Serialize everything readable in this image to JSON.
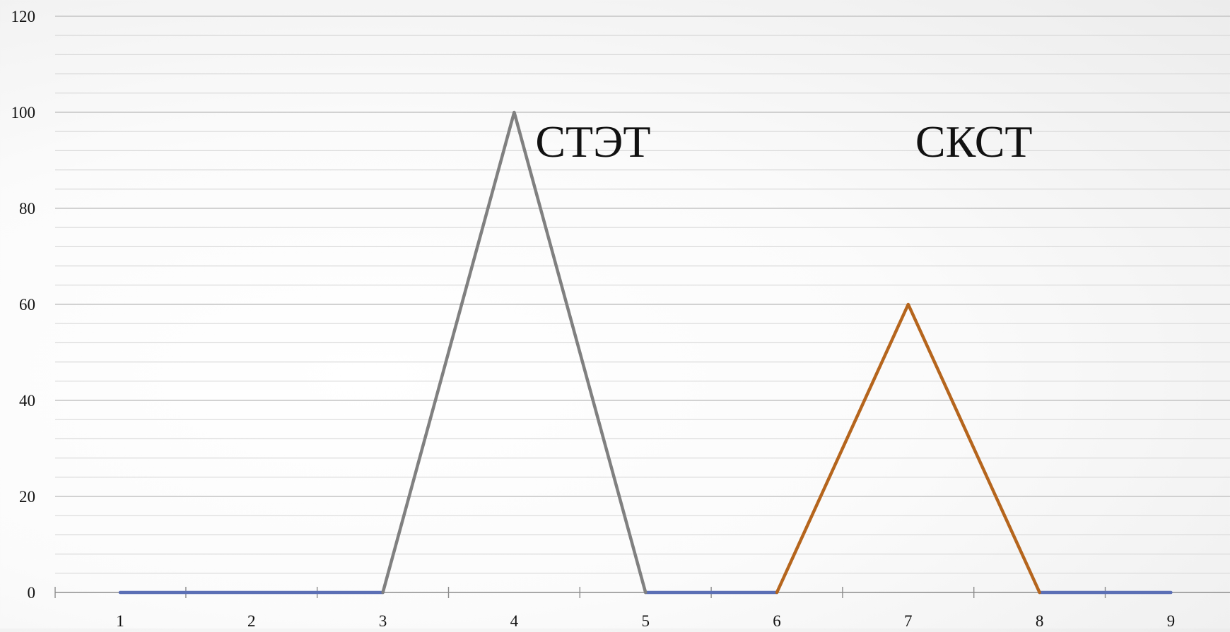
{
  "chart_data": {
    "type": "line",
    "title": "",
    "xlabel": "",
    "ylabel": "",
    "categories": [
      "1",
      "2",
      "3",
      "4",
      "5",
      "6",
      "7",
      "8",
      "9"
    ],
    "ylim": [
      0,
      120
    ],
    "y_ticks": [
      0,
      20,
      40,
      60,
      80,
      100,
      120
    ],
    "grid": true,
    "legend": "none",
    "series": [
      {
        "color": "#5b6fb5",
        "values": [
          0,
          0,
          0,
          null,
          0,
          0,
          null,
          0,
          0
        ]
      },
      {
        "color": "#808080",
        "values": [
          null,
          null,
          0,
          100,
          0,
          null,
          null,
          null,
          null
        ]
      },
      {
        "color": "#b5651d",
        "values": [
          null,
          null,
          null,
          null,
          null,
          0,
          60,
          0,
          null
        ]
      }
    ],
    "annotations": [
      {
        "text": "СТЭТ",
        "x": 4.6,
        "y": 94
      },
      {
        "text": "СКСТ",
        "x": 7.5,
        "y": 94
      }
    ]
  }
}
